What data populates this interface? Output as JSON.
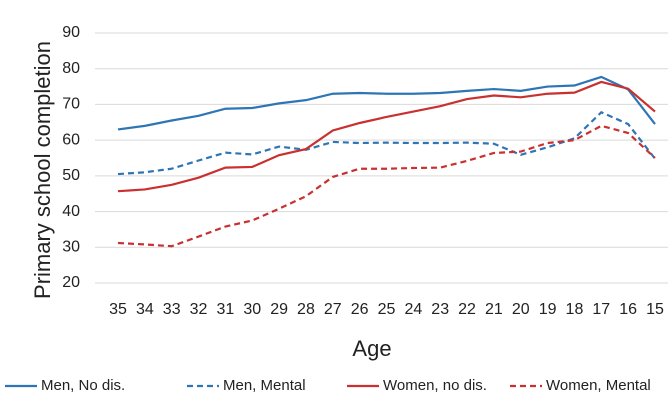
{
  "chart_data": {
    "type": "line",
    "x_label": "Age",
    "y_label": "Primary school completion",
    "categories": [
      35,
      34,
      33,
      32,
      31,
      30,
      29,
      28,
      27,
      26,
      25,
      24,
      23,
      22,
      21,
      20,
      19,
      18,
      17,
      16,
      15
    ],
    "series": [
      {
        "name": "Men, No dis.",
        "color": "#2e75b6",
        "dashed": false,
        "values": [
          63,
          64,
          65.5,
          66.8,
          68.8,
          69,
          70.3,
          71.2,
          73,
          73.2,
          73,
          73,
          73.2,
          73.8,
          74.3,
          73.8,
          75,
          75.3,
          77.7,
          74.2,
          64.5
        ]
      },
      {
        "name": "Men, Mental",
        "color": "#2e75b6",
        "dashed": true,
        "values": [
          50.5,
          51,
          52,
          54.3,
          56.5,
          56,
          58.2,
          57.3,
          59.5,
          59.2,
          59.3,
          59.2,
          59.2,
          59.3,
          59,
          55.9,
          58,
          60.5,
          67.8,
          64.5,
          54.8
        ]
      },
      {
        "name": "Women, no dis.",
        "color": "#c8312f",
        "dashed": false,
        "values": [
          45.7,
          46.2,
          47.5,
          49.5,
          52.3,
          52.5,
          55.8,
          57.5,
          62.7,
          64.8,
          66.5,
          68,
          69.5,
          71.5,
          72.5,
          72,
          73,
          73.3,
          76.3,
          74.4,
          68
        ]
      },
      {
        "name": "Women, Mental",
        "color": "#c8312f",
        "dashed": true,
        "values": [
          31.2,
          30.8,
          30.3,
          33,
          35.8,
          37.5,
          40.8,
          44.3,
          49.7,
          52,
          52,
          52.2,
          52.3,
          54.2,
          56.4,
          56.8,
          59.2,
          60,
          64,
          62,
          55
        ]
      }
    ],
    "ylim": [
      20,
      90
    ],
    "yticks": [
      20,
      30,
      40,
      50,
      60,
      70,
      80,
      90
    ],
    "grid": true
  }
}
